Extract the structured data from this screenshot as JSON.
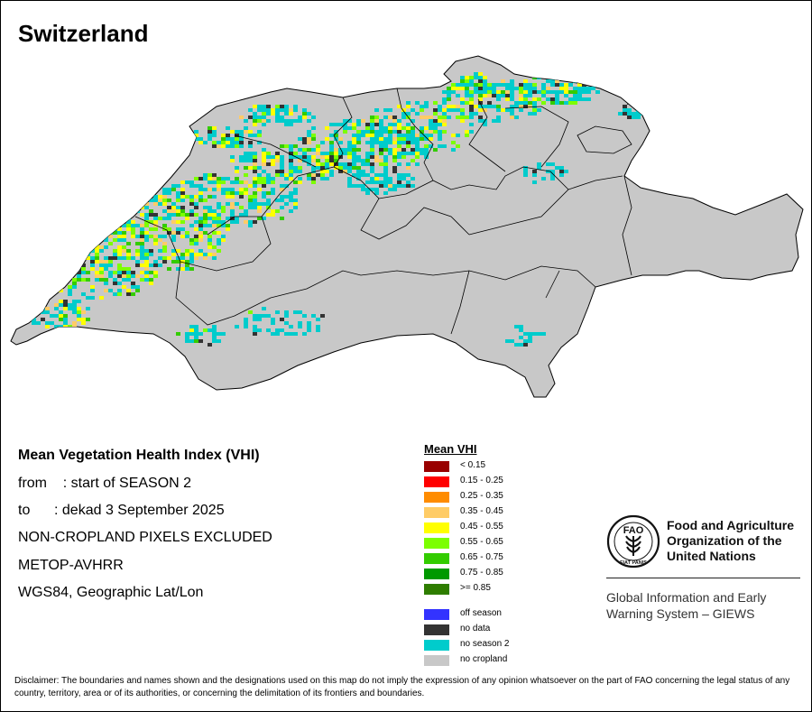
{
  "map_title": "Switzerland",
  "info": {
    "heading": "Mean Vegetation Health Index (VHI)",
    "from_line": "from    : start of SEASON 2",
    "to_line": "to      : dekad 3 September 2025",
    "excluded": "NON-CROPLAND PIXELS EXCLUDED",
    "sensor": "METOP-AVHRR",
    "projection": "WGS84, Geographic Lat/Lon"
  },
  "legend": {
    "title": "Mean VHI",
    "classes": [
      {
        "label": "< 0.15",
        "color": "#990000"
      },
      {
        "label": "0.15 - 0.25",
        "color": "#ff0000"
      },
      {
        "label": "0.25 - 0.35",
        "color": "#ff8c00"
      },
      {
        "label": "0.35 - 0.45",
        "color": "#ffcc66"
      },
      {
        "label": "0.45 - 0.55",
        "color": "#ffff00"
      },
      {
        "label": "0.55 - 0.65",
        "color": "#7cff00"
      },
      {
        "label": "0.65 - 0.75",
        "color": "#33cc00"
      },
      {
        "label": "0.75 - 0.85",
        "color": "#009900"
      },
      {
        "label": ">= 0.85",
        "color": "#2e7d00"
      }
    ],
    "other": [
      {
        "label": "off season",
        "color": "#3333ff"
      },
      {
        "label": "no data",
        "color": "#333333"
      },
      {
        "label": "no season 2",
        "color": "#00cccc"
      },
      {
        "label": "no cropland",
        "color": "#c8c8c8"
      }
    ]
  },
  "organization": {
    "logo_letters": "FAO",
    "logo_motto": "FIAT PANIS",
    "name_line1": "Food and Agriculture",
    "name_line2": "Organization of the",
    "name_line3": "United Nations",
    "program_line1": "Global Information and Early",
    "program_line2": "Warning System – GIEWS"
  },
  "disclaimer": "Disclaimer: The boundaries and names shown and the designations used on this map do not imply the expression of any opinion whatsoever on the part of FAO concerning the legal status of any country, territory, area or of its authorities, or concerning the delimitation of its frontiers and boundaries.",
  "colors": {
    "country_fill": "#c8c8c8",
    "boundary": "#000000",
    "no_season": "#00cccc",
    "no_data": "#333333"
  }
}
